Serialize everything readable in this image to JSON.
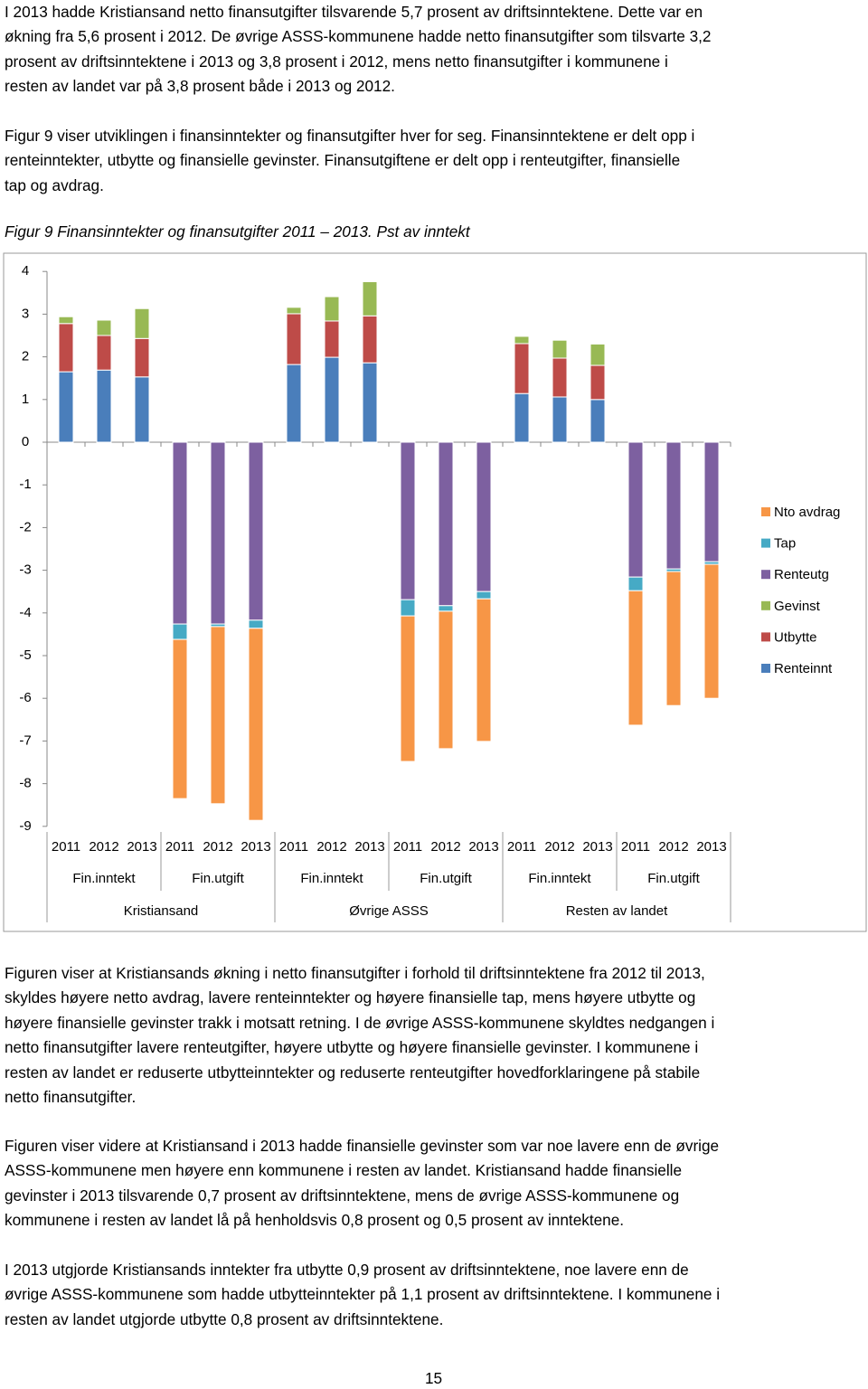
{
  "paragraphs": [
    [
      "I 2013 hadde Kristiansand netto finansutgifter tilsvarende 5,7 prosent av driftsinntektene. Dette var en",
      "økning fra 5,6 prosent i 2012. De øvrige ASSS-kommunene hadde netto finansutgifter som tilsvarte 3,2",
      "prosent av driftsinntektene i 2013 og 3,8 prosent i 2012, mens netto finansutgifter i kommunene i",
      "resten av landet var på 3,8 prosent både i 2013 og 2012."
    ],
    [
      "Figur 9 viser utviklingen i finansinntekter og finansutgifter hver for seg. Finansinntektene er delt opp i",
      "renteinntekter, utbytte og finansielle gevinster. Finansutgiftene er delt opp i renteutgifter, finansielle",
      "tap og avdrag."
    ],
    [
      "Figuren viser at Kristiansands økning i netto finansutgifter i forhold til driftsinntektene fra 2012 til 2013,",
      "skyldes høyere netto avdrag, lavere renteinntekter og høyere finansielle tap, mens høyere utbytte og",
      "høyere finansielle gevinster trakk i motsatt retning. I de øvrige ASSS-kommunene skyldtes nedgangen i",
      "netto finansutgifter lavere renteutgifter, høyere utbytte og høyere finansielle gevinster. I kommunene i",
      "resten av landet er reduserte utbytteinntekter og reduserte renteutgifter hovedforklaringene på stabile",
      "netto finansutgifter."
    ],
    [
      "Figuren viser videre at Kristiansand i 2013 hadde finansielle gevinster som var noe lavere enn de øvrige",
      "ASSS-kommunene men høyere enn kommunene i resten av landet. Kristiansand hadde finansielle",
      "gevinster i 2013 tilsvarende 0,7 prosent av driftsinntektene, mens de øvrige ASSS-kommunene og",
      "kommunene i resten av landet lå på henholdsvis 0,8 prosent og 0,5 prosent av inntektene."
    ],
    [
      "I 2013 utgjorde Kristiansands inntekter fra utbytte 0,9 prosent av driftsinntektene, noe lavere enn de",
      "øvrige ASSS-kommunene som hadde utbytteinntekter på 1,1 prosent av driftsinntektene. I kommunene i",
      "resten av landet utgjorde utbytte 0,8 prosent av driftsinntektene."
    ]
  ],
  "caption": "Figur 9 Finansinntekter og finansutgifter 2011 – 2013. Pst av inntekt",
  "page_number": "15",
  "chart_data": {
    "type": "stacked_bar",
    "categories": [
      "2011",
      "2012",
      "2013",
      "2011",
      "2012",
      "2013",
      "2011",
      "2012",
      "2013",
      "2011",
      "2012",
      "2013",
      "2011",
      "2012",
      "2013",
      "2011",
      "2012",
      "2013"
    ],
    "category_groups": [
      "Fin.inntekt",
      "Fin.utgift",
      "Fin.inntekt",
      "Fin.utgift",
      "Fin.inntekt",
      "Fin.utgift"
    ],
    "category_supergroups": [
      "Kristiansand",
      "Øvrige ASSS",
      "Resten av landet"
    ],
    "series": [
      {
        "name": "Renteinnt",
        "color": "#4a7ebb",
        "values": [
          1.65,
          1.69,
          1.53,
          null,
          null,
          null,
          1.82,
          1.99,
          1.86,
          null,
          null,
          null,
          1.14,
          1.06,
          1.0,
          null,
          null,
          null
        ]
      },
      {
        "name": "Utbytte",
        "color": "#be4b48",
        "values": [
          1.13,
          0.81,
          0.9,
          null,
          null,
          null,
          1.19,
          0.85,
          1.1,
          null,
          null,
          null,
          1.17,
          0.91,
          0.8,
          null,
          null,
          null
        ]
      },
      {
        "name": "Gevinst",
        "color": "#98b954",
        "values": [
          0.16,
          0.36,
          0.7,
          null,
          null,
          null,
          0.15,
          0.57,
          0.8,
          null,
          null,
          null,
          0.17,
          0.42,
          0.5,
          null,
          null,
          null
        ]
      },
      {
        "name": "Renteutg",
        "color": "#7d60a0",
        "values": [
          null,
          null,
          null,
          -4.26,
          -4.26,
          -4.17,
          null,
          null,
          null,
          -3.69,
          -3.83,
          -3.5,
          null,
          null,
          null,
          -3.16,
          -2.97,
          -2.8
        ]
      },
      {
        "name": "Tap",
        "color": "#46aac5",
        "values": [
          null,
          null,
          null,
          -0.36,
          -0.06,
          -0.19,
          null,
          null,
          null,
          -0.38,
          -0.13,
          -0.17,
          null,
          null,
          null,
          -0.32,
          -0.06,
          -0.06
        ]
      },
      {
        "name": "Nto avdrag",
        "color": "#f79646",
        "values": [
          null,
          null,
          null,
          -3.73,
          -4.15,
          -4.5,
          null,
          null,
          null,
          -3.41,
          -3.22,
          -3.34,
          null,
          null,
          null,
          -3.15,
          -3.14,
          -3.14
        ]
      }
    ],
    "ylim": [
      -9,
      4
    ],
    "yticks": [
      4,
      3,
      2,
      1,
      0,
      -1,
      -2,
      -3,
      -4,
      -5,
      -6,
      -7,
      -8,
      -9
    ],
    "grid": false,
    "legend": "right"
  }
}
